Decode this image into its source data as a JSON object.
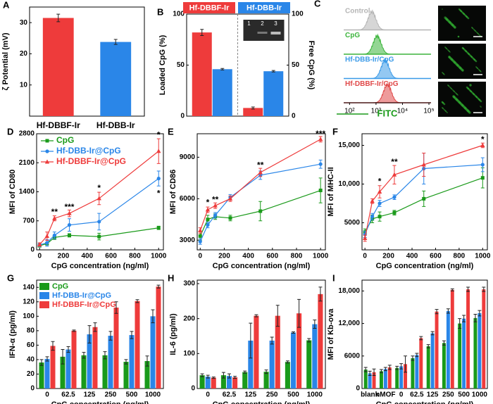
{
  "chart_data": [
    {
      "type": "bar",
      "label": "A",
      "ylabel": "ζ Potential (mV)",
      "categories": [
        "Hf-DBBF-Ir",
        "Hf-DBB-Ir"
      ],
      "values": [
        31.5,
        23.8
      ],
      "errors": [
        1.2,
        0.8
      ],
      "colors": [
        "#ee3b3b",
        "#2a86e8"
      ],
      "ylim": [
        0,
        35
      ],
      "yticks": [
        10,
        20,
        30
      ]
    },
    {
      "type": "bar",
      "label": "B",
      "ylabel": "Loaded CpG (%)",
      "y2label": "Free CpG (%)",
      "categories": [
        null,
        null
      ],
      "legend": "top",
      "series": [
        {
          "name": "Hf-DBBF-Ir",
          "color": "#ee3b3b",
          "values": [
            82,
            8
          ],
          "errors": [
            3,
            1
          ]
        },
        {
          "name": "Hf-DBB-Ir",
          "color": "#2a86e8",
          "values": [
            46,
            44
          ],
          "errors": [
            0.7,
            0.7
          ]
        }
      ],
      "ylim": [
        0,
        100
      ],
      "yticks": [
        0,
        50,
        100
      ],
      "y2lim": [
        0,
        100
      ],
      "y2ticks": [
        0,
        50,
        100
      ],
      "inset_labels": [
        "1",
        "2",
        "3"
      ]
    },
    {
      "type": "histogram",
      "label": "C",
      "xlabel": "FITC",
      "xlog": true,
      "xlim": [
        60,
        120000
      ],
      "xticks": [
        {
          "value": 100,
          "label": "10²"
        },
        {
          "value": 1000,
          "label": "10³"
        },
        {
          "value": 10000,
          "label": "10⁴"
        },
        {
          "value": 100000,
          "label": "10⁵"
        }
      ],
      "series": [
        {
          "name": "Control",
          "color": "#b5b5b5",
          "peak": 700
        },
        {
          "name": "CpG",
          "color": "#3cb43c",
          "peak": 1100
        },
        {
          "name": "Hf-DBB-Ir/CpG",
          "color": "#3a9ae8",
          "peak": 2200
        },
        {
          "name": "Hf-DBBF-Ir/CpG",
          "color": "#e04848",
          "peak": 2700
        }
      ]
    },
    {
      "type": "line",
      "label": "D",
      "ylabel": "MFI of CD80",
      "xlabel": "CpG concentration (ng/ml)",
      "legend": "upper left",
      "x": [
        0,
        62.5,
        125,
        250,
        500,
        1000
      ],
      "xlim": [
        -25,
        1040
      ],
      "xticks": [
        0,
        200,
        400,
        600,
        800,
        1000
      ],
      "ylim": [
        0,
        2800
      ],
      "yticks": [
        0,
        700,
        1400,
        2100,
        2800
      ],
      "series": [
        {
          "name": "CpG",
          "color": "#1a9a1a",
          "marker": "square",
          "values": [
            100,
            150,
            300,
            350,
            320,
            530
          ],
          "errors": [
            30,
            30,
            50,
            40,
            80,
            40
          ]
        },
        {
          "name": "Hf-DBB-Ir@CpG",
          "color": "#2a86e8",
          "marker": "circle",
          "values": [
            120,
            170,
            350,
            600,
            680,
            1720
          ],
          "errors": [
            40,
            80,
            80,
            150,
            200,
            180
          ]
        },
        {
          "name": "Hf-DBBF-Ir@CpG",
          "color": "#ee3b3b",
          "marker": "triangle",
          "values": [
            130,
            330,
            760,
            880,
            1240,
            2380
          ],
          "errors": [
            40,
            100,
            60,
            80,
            150,
            300
          ]
        }
      ],
      "significance": [
        {
          "x": 125,
          "y": 900,
          "text": "**"
        },
        {
          "x": 250,
          "y": 1020,
          "text": "***"
        },
        {
          "x": 500,
          "y": 1480,
          "text": "*"
        },
        {
          "x": 1000,
          "y": 2760,
          "text": "*"
        },
        {
          "x": 1000,
          "y": 1350,
          "text": "*"
        }
      ]
    },
    {
      "type": "line",
      "label": "E",
      "ylabel": "MFI of CD86",
      "xlabel": "CpG concentration (ng/ml)",
      "x": [
        0,
        62.5,
        125,
        250,
        500,
        1000
      ],
      "xlim": [
        -25,
        1040
      ],
      "xticks": [
        0,
        200,
        400,
        600,
        800,
        1000
      ],
      "ylim": [
        2300,
        10700
      ],
      "yticks": [
        3000,
        6000,
        9000
      ],
      "series": [
        {
          "name": "CpG",
          "color": "#1a9a1a",
          "marker": "square",
          "values": [
            3300,
            4500,
            4700,
            4600,
            5100,
            6600
          ],
          "errors": [
            300,
            300,
            200,
            200,
            700,
            900
          ]
        },
        {
          "name": "Hf-DBB-Ir@CpG",
          "color": "#2a86e8",
          "marker": "circle",
          "values": [
            2900,
            4100,
            4800,
            6100,
            7700,
            8500
          ],
          "errors": [
            200,
            200,
            200,
            200,
            300,
            300
          ]
        },
        {
          "name": "Hf-DBBF-Ir@CpG",
          "color": "#ee3b3b",
          "marker": "triangle",
          "values": [
            3700,
            5200,
            5500,
            6000,
            7900,
            10300
          ],
          "errors": [
            200,
            200,
            200,
            200,
            300,
            200
          ]
        }
      ],
      "significance": [
        {
          "x": 62.5,
          "y": 5700,
          "text": "*"
        },
        {
          "x": 125,
          "y": 5900,
          "text": "**"
        },
        {
          "x": 500,
          "y": 8400,
          "text": "**"
        },
        {
          "x": 1000,
          "y": 10650,
          "text": "***"
        }
      ]
    },
    {
      "type": "line",
      "label": "F",
      "ylabel": "MFI of MHC-II",
      "xlabel": "CpG concentration (ng/ml)",
      "x": [
        0,
        62.5,
        125,
        250,
        500,
        1000
      ],
      "xlim": [
        -25,
        1040
      ],
      "xticks": [
        0,
        200,
        400,
        600,
        800,
        1000
      ],
      "ylim": [
        1500,
        16500
      ],
      "yticks": [
        {
          "value": 5000,
          "label": "5000"
        },
        {
          "value": 10000,
          "label": "10,000"
        },
        {
          "value": 15000,
          "label": "15,000"
        }
      ],
      "series": [
        {
          "name": "CpG",
          "color": "#1a9a1a",
          "marker": "square",
          "values": [
            3800,
            5500,
            5800,
            6300,
            8100,
            10800
          ],
          "errors": [
            400,
            500,
            600,
            300,
            1000,
            1300
          ]
        },
        {
          "name": "Hf-DBB-Ir@CpG",
          "color": "#2a86e8",
          "marker": "circle",
          "values": [
            3500,
            5800,
            7500,
            8300,
            12000,
            12500
          ],
          "errors": [
            400,
            400,
            400,
            300,
            2000,
            900
          ]
        },
        {
          "name": "Hf-DBBF-Ir@CpG",
          "color": "#ee3b3b",
          "marker": "triangle",
          "values": [
            3000,
            7800,
            9000,
            11200,
            12500,
            15000
          ],
          "errors": [
            400,
            300,
            800,
            1200,
            1500,
            300
          ]
        }
      ],
      "significance": [
        {
          "x": 125,
          "y": 10300,
          "text": "*"
        },
        {
          "x": 250,
          "y": 12800,
          "text": "**"
        },
        {
          "x": 1000,
          "y": 15700,
          "text": "*"
        }
      ]
    },
    {
      "type": "bar",
      "label": "G",
      "ylabel": "IFN-α (pg/ml)",
      "xlabel": "CpG concentration (ng/ml)",
      "legend": "upper left",
      "categories": [
        "0",
        "62.5",
        "125",
        "250",
        "500",
        "1000"
      ],
      "ylim": [
        0,
        150
      ],
      "yticks": [
        0,
        20,
        40,
        60,
        80,
        100,
        120,
        140
      ],
      "series": [
        {
          "name": "CpG",
          "color": "#1a9a1a",
          "values": [
            36,
            44,
            46,
            46,
            37,
            38
          ],
          "errors": [
            4,
            10,
            4,
            5,
            3,
            7
          ]
        },
        {
          "name": "Hf-DBB-Ir@CpG",
          "color": "#2a86e8",
          "values": [
            41,
            54,
            75,
            73,
            74,
            100
          ],
          "errors": [
            3,
            4,
            12,
            6,
            5,
            9
          ]
        },
        {
          "name": "Hf-DBBF-Ir@CpG",
          "color": "#ee3b3b",
          "values": [
            59,
            80,
            85,
            112,
            121,
            141
          ],
          "errors": [
            6,
            1,
            6,
            8,
            2,
            2
          ]
        }
      ]
    },
    {
      "type": "bar",
      "label": "H",
      "ylabel": "IL-6 (pg/ml)",
      "xlabel": "CpG concentration (ng/ml)",
      "categories": [
        "0",
        "62.5",
        "125",
        "250",
        "500",
        "1000"
      ],
      "ylim": [
        0,
        310
      ],
      "yticks": [
        0,
        100,
        200,
        300
      ],
      "series": [
        {
          "name": "CpG",
          "color": "#1a9a1a",
          "values": [
            38,
            38,
            47,
            48,
            76,
            138
          ],
          "errors": [
            4,
            8,
            3,
            5,
            3,
            5
          ]
        },
        {
          "name": "Hf-DBB-Ir@CpG",
          "color": "#2a86e8",
          "values": [
            34,
            36,
            137,
            137,
            160,
            184
          ],
          "errors": [
            4,
            6,
            50,
            10,
            2,
            12
          ]
        },
        {
          "name": "Hf-DBBF-Ir@CpG",
          "color": "#ee3b3b",
          "values": [
            31,
            32,
            208,
            208,
            215,
            270
          ],
          "errors": [
            2,
            3,
            3,
            30,
            40,
            20
          ]
        }
      ]
    },
    {
      "type": "bar",
      "label": "I",
      "ylabel": "MFI of Kb-ova",
      "xlabel": "CpG concentration (ng/ml)",
      "categories": [
        "blank",
        "nMOF",
        "0",
        "62.5",
        "125",
        "250",
        "500",
        "1000"
      ],
      "ylim": [
        0,
        20000
      ],
      "yticks": [
        0,
        6000,
        {
          "value": 12000,
          "label": "12,000"
        },
        {
          "value": 18000,
          "label": "18,000"
        }
      ],
      "series": [
        {
          "name": "CpG",
          "color": "#1a9a1a",
          "values": [
            3500,
            3200,
            3800,
            5600,
            7800,
            8400,
            12000,
            13000
          ],
          "errors": [
            400,
            300,
            300,
            400,
            300,
            400,
            900,
            700
          ]
        },
        {
          "name": "Hf-DBB-Ir@CpG",
          "color": "#2a86e8",
          "values": [
            2800,
            3600,
            4100,
            6200,
            10200,
            14300,
            12900,
            13900
          ],
          "errors": [
            400,
            300,
            500,
            300,
            300,
            400,
            600,
            500
          ]
        },
        {
          "name": "Hf-DBBF-Ir@CpG",
          "color": "#ee3b3b",
          "values": [
            3000,
            3900,
            4500,
            9300,
            14200,
            18200,
            18300,
            18300
          ],
          "errors": [
            600,
            400,
            1500,
            300,
            400,
            200,
            400,
            400
          ]
        }
      ]
    }
  ]
}
